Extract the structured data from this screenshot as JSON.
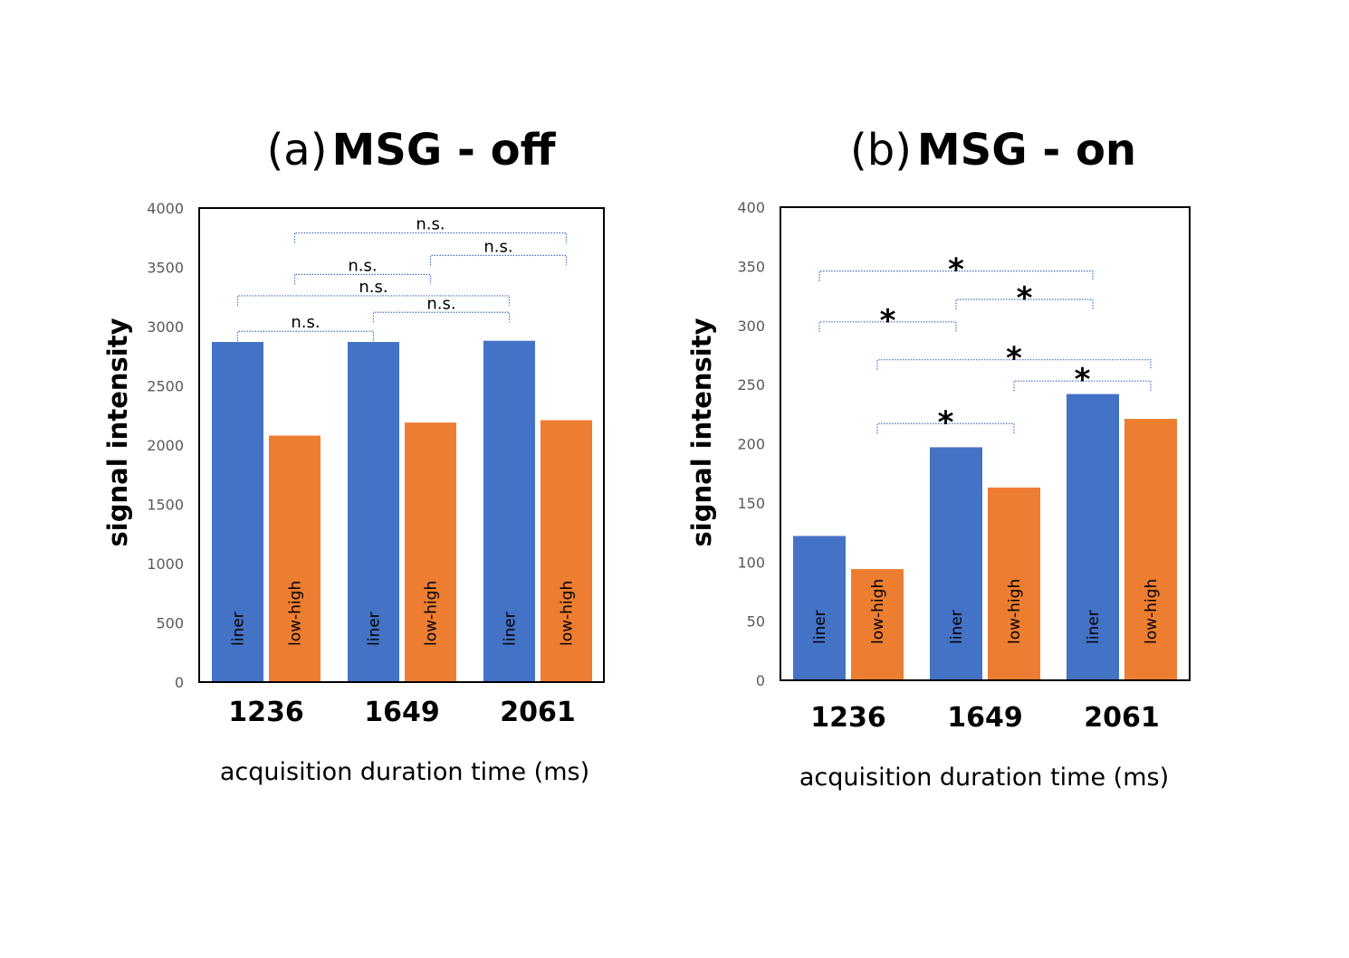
{
  "chart_data": [
    {
      "type": "bar",
      "panel_label": "(a)",
      "title": "MSG - off",
      "xlabel": "acquisition duration time (ms)",
      "ylabel": "signal intensity",
      "ylim": [
        0,
        4000
      ],
      "yticks": [
        0,
        500,
        1000,
        1500,
        2000,
        2500,
        3000,
        3500,
        4000
      ],
      "categories": [
        "1236",
        "1649",
        "2061"
      ],
      "series": [
        {
          "name": "liner",
          "color": "#4472C4",
          "values": [
            2870,
            2870,
            2880
          ]
        },
        {
          "name": "low-high",
          "color": "#ED7D31",
          "values": [
            2080,
            2190,
            2210
          ]
        }
      ],
      "comparisons": [
        {
          "from": [
            0,
            0
          ],
          "to": [
            1,
            0
          ],
          "y": 2960,
          "label": "n.s."
        },
        {
          "from": [
            1,
            0
          ],
          "to": [
            2,
            0
          ],
          "y": 3120,
          "label": "n.s."
        },
        {
          "from": [
            0,
            0
          ],
          "to": [
            2,
            0
          ],
          "y": 3260,
          "label": "n.s."
        },
        {
          "from": [
            0,
            1
          ],
          "to": [
            1,
            1
          ],
          "y": 3440,
          "label": "n.s."
        },
        {
          "from": [
            1,
            1
          ],
          "to": [
            2,
            1
          ],
          "y": 3600,
          "label": "n.s."
        },
        {
          "from": [
            0,
            1
          ],
          "to": [
            2,
            1
          ],
          "y": 3790,
          "label": "n.s."
        }
      ]
    },
    {
      "type": "bar",
      "panel_label": "(b)",
      "title": "MSG - on",
      "xlabel": "acquisition duration time (ms)",
      "ylabel": "signal intensity",
      "ylim": [
        0,
        400
      ],
      "yticks": [
        0,
        50,
        100,
        150,
        200,
        250,
        300,
        350,
        400
      ],
      "categories": [
        "1236",
        "1649",
        "2061"
      ],
      "series": [
        {
          "name": "liner",
          "color": "#4472C4",
          "values": [
            122,
            197,
            242
          ]
        },
        {
          "name": "low-high",
          "color": "#ED7D31",
          "values": [
            94,
            163,
            221
          ]
        }
      ],
      "comparisons": [
        {
          "from": [
            0,
            1
          ],
          "to": [
            1,
            1
          ],
          "y": 217,
          "label": "*"
        },
        {
          "from": [
            1,
            1
          ],
          "to": [
            2,
            1
          ],
          "y": 253,
          "label": "*"
        },
        {
          "from": [
            0,
            1
          ],
          "to": [
            2,
            1
          ],
          "y": 271,
          "label": "*"
        },
        {
          "from": [
            0,
            0
          ],
          "to": [
            1,
            0
          ],
          "y": 303,
          "label": "*"
        },
        {
          "from": [
            1,
            0
          ],
          "to": [
            2,
            0
          ],
          "y": 322,
          "label": "*"
        },
        {
          "from": [
            0,
            0
          ],
          "to": [
            2,
            0
          ],
          "y": 346,
          "label": "*"
        }
      ]
    }
  ]
}
